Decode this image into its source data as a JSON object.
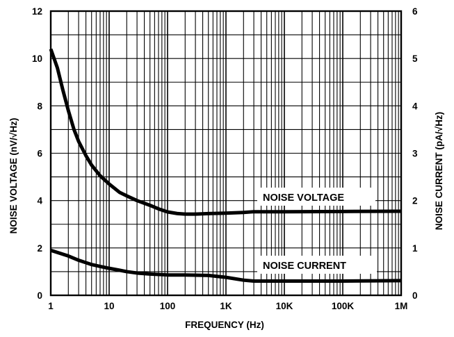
{
  "chart_data": {
    "type": "line",
    "xlabel": "FREQUENCY (Hz)",
    "ylabel_left": "NOISE VOLTAGE (nV/√Hz)",
    "ylabel_right": "NOISE CURRENT (pA/√Hz)",
    "x_scale": "log",
    "xlim": [
      1,
      1000000
    ],
    "ylim_left": [
      0,
      12
    ],
    "ylim_right": [
      0,
      6
    ],
    "grid": true,
    "x_ticks": [
      {
        "value": 1,
        "label": "1"
      },
      {
        "value": 10,
        "label": "10"
      },
      {
        "value": 100,
        "label": "100"
      },
      {
        "value": 1000,
        "label": "1K"
      },
      {
        "value": 10000,
        "label": "10K"
      },
      {
        "value": 100000,
        "label": "100K"
      },
      {
        "value": 1000000,
        "label": "1M"
      }
    ],
    "y_ticks_left": [
      {
        "value": 0,
        "label": "0"
      },
      {
        "value": 2,
        "label": "2"
      },
      {
        "value": 4,
        "label": "4"
      },
      {
        "value": 6,
        "label": "6"
      },
      {
        "value": 8,
        "label": "8"
      },
      {
        "value": 10,
        "label": "10"
      },
      {
        "value": 12,
        "label": "12"
      }
    ],
    "y_ticks_right": [
      {
        "value": 0,
        "label": "0"
      },
      {
        "value": 1,
        "label": "1"
      },
      {
        "value": 2,
        "label": "2"
      },
      {
        "value": 3,
        "label": "3"
      },
      {
        "value": 4,
        "label": "4"
      },
      {
        "value": 5,
        "label": "5"
      },
      {
        "value": 6,
        "label": "6"
      }
    ],
    "series": [
      {
        "name": "NOISE VOLTAGE",
        "axis": "left",
        "x": [
          1,
          1.3,
          1.6,
          2,
          2.5,
          3,
          4,
          5,
          7,
          10,
          15,
          20,
          30,
          50,
          70,
          100,
          150,
          200,
          300,
          500,
          1000,
          2000,
          3000,
          5000,
          10000,
          100000,
          1000000
        ],
        "y": [
          10.4,
          9.6,
          8.7,
          7.8,
          7.0,
          6.5,
          5.9,
          5.5,
          5.05,
          4.7,
          4.35,
          4.2,
          4.0,
          3.8,
          3.65,
          3.52,
          3.45,
          3.43,
          3.43,
          3.45,
          3.47,
          3.5,
          3.53,
          3.53,
          3.53,
          3.54,
          3.55
        ]
      },
      {
        "name": "NOISE CURRENT",
        "axis": "right",
        "x": [
          1,
          1.5,
          2,
          3,
          5,
          7,
          10,
          15,
          20,
          30,
          50,
          100,
          200,
          500,
          1000,
          2000,
          3000,
          5000,
          10000,
          100000,
          1000000
        ],
        "y": [
          0.95,
          0.88,
          0.83,
          0.74,
          0.65,
          0.61,
          0.57,
          0.53,
          0.5,
          0.47,
          0.45,
          0.43,
          0.43,
          0.42,
          0.38,
          0.32,
          0.3,
          0.3,
          0.3,
          0.3,
          0.31
        ]
      }
    ],
    "annotations": [
      {
        "text": "NOISE VOLTAGE",
        "series": "NOISE VOLTAGE"
      },
      {
        "text": "NOISE CURRENT",
        "series": "NOISE CURRENT"
      }
    ]
  }
}
